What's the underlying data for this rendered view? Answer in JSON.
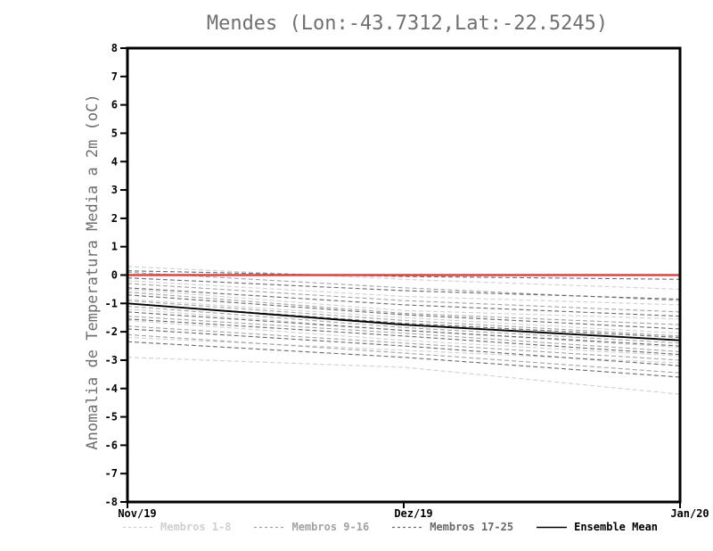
{
  "chart_data": {
    "type": "line",
    "title": "Mendes (Lon:-43.7312,Lat:-22.5245)",
    "ylabel": "Anomalia de Temperatura Media a 2m (oC)",
    "xlabel": "",
    "x_categories": [
      "Nov/19",
      "Dez/19",
      "Jan/20"
    ],
    "ylim": [
      -8,
      8
    ],
    "yticks": [
      -8,
      -7,
      -6,
      -5,
      -4,
      -3,
      -2,
      -1,
      0,
      1,
      2,
      3,
      4,
      5,
      6,
      7,
      8
    ],
    "grid": false,
    "legend_position": "bottom",
    "colors": {
      "axis": "#000000",
      "tick_label": "#000000",
      "title_gray": "#6f6f6f",
      "members_1_8": "#cfcfcf",
      "members_9_16": "#a2a2a2",
      "members_17_25": "#696969",
      "ensemble_mean": "#000000",
      "zero_line": "#ef3d3d"
    },
    "zero_line": {
      "name": "zero-anomaly",
      "value": 0,
      "color": "#ef3d3d",
      "style": "solid"
    },
    "groups": [
      {
        "name": "Membros 1-8",
        "color": "#cfcfcf",
        "style": "dashed",
        "members": [
          [
            0.3,
            -0.15,
            -0.5
          ],
          [
            -0.2,
            -0.75,
            -1.05
          ],
          [
            -0.5,
            -1.25,
            -1.55
          ],
          [
            -0.85,
            -1.5,
            -2.05
          ],
          [
            -1.2,
            -1.95,
            -2.55
          ],
          [
            -1.6,
            -2.3,
            -2.85
          ],
          [
            -2.2,
            -2.65,
            -3.1
          ],
          [
            -2.9,
            -3.25,
            -4.2
          ]
        ]
      },
      {
        "name": "Membros 9-16",
        "color": "#a2a2a2",
        "style": "dashed",
        "members": [
          [
            0.1,
            -0.45,
            -0.9
          ],
          [
            -0.3,
            -0.9,
            -1.3
          ],
          [
            -0.6,
            -1.35,
            -1.75
          ],
          [
            -0.9,
            -1.6,
            -2.15
          ],
          [
            -1.1,
            -1.85,
            -2.4
          ],
          [
            -1.45,
            -2.05,
            -2.7
          ],
          [
            -1.8,
            -2.4,
            -3.0
          ],
          [
            -2.1,
            -2.75,
            -3.45
          ]
        ]
      },
      {
        "name": "Membros 17-25",
        "color": "#696969",
        "style": "dashed",
        "members": [
          [
            0.15,
            -0.05,
            -0.15
          ],
          [
            -0.1,
            -0.55,
            -0.85
          ],
          [
            -0.45,
            -1.05,
            -1.45
          ],
          [
            -0.7,
            -1.4,
            -1.9
          ],
          [
            -1.0,
            -1.7,
            -2.2
          ],
          [
            -1.3,
            -1.95,
            -2.5
          ],
          [
            -1.55,
            -2.15,
            -2.8
          ],
          [
            -1.9,
            -2.5,
            -3.2
          ],
          [
            -2.35,
            -2.9,
            -3.6
          ]
        ]
      }
    ],
    "ensemble_mean": {
      "name": "Ensemble Mean",
      "color": "#000000",
      "style": "solid",
      "values": [
        -1.0,
        -1.75,
        -2.3
      ]
    },
    "legend": [
      {
        "label": "Membros 1-8",
        "color": "#cfcfcf",
        "line": "dashed"
      },
      {
        "label": "Membros 9-16",
        "color": "#a2a2a2",
        "line": "dashed"
      },
      {
        "label": "Membros 17-25",
        "color": "#696969",
        "line": "dashed"
      },
      {
        "label": "Ensemble Mean",
        "color": "#000000",
        "line": "solid"
      }
    ]
  }
}
